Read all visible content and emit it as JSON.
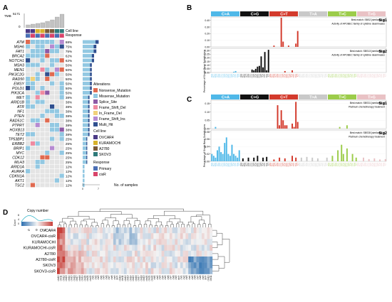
{
  "panels": {
    "a": {
      "letter": "A",
      "tmb_label": "TMB",
      "tmb_max": "5171",
      "tmb_zero": "0",
      "track_labels": [
        "Cell line",
        "Response"
      ],
      "genes": [
        "ATM",
        "MSH6",
        "FAT1",
        "BRCA2",
        "NOTCH1",
        "MSH3",
        "MEN1",
        "PIK3C2G",
        "RAD50",
        "EMSY",
        "POLD1",
        "PIK3CA",
        "MET",
        "ARID1B",
        "ATR",
        "NF1",
        "PTEN",
        "RAD51C",
        "PTPRT",
        "HOXB13",
        "TET2",
        "TP53BP1",
        "ERBB2",
        "BRIP1",
        "MYC",
        "CDK12",
        "MLH3",
        "ARID1A",
        "AURKA",
        "CDKN1A",
        "AKT1",
        "TSC2"
      ],
      "percents": [
        "88%",
        "75%",
        "75%",
        "62%",
        "62%",
        "50%",
        "50%",
        "50%",
        "50%",
        "50%",
        "50%",
        "50%",
        "38%",
        "38%",
        "38%",
        "38%",
        "38%",
        "38%",
        "38%",
        "38%",
        "38%",
        "25%",
        "25%",
        "25%",
        "25%",
        "25%",
        "25%",
        "12%",
        "12%",
        "12%",
        "12%",
        "12%"
      ],
      "alterations_title": "Alterations",
      "alterations": [
        {
          "name": "Nonsense_Mutation",
          "color": "#e06a50"
        },
        {
          "name": "Missense_Mutation",
          "color": "#92c8e2"
        },
        {
          "name": "Splice_Site",
          "color": "#8d5aa6"
        },
        {
          "name": "Frame_Shift_Del",
          "color": "#ef8aa0"
        },
        {
          "name": "In_Frame_Del",
          "color": "#f1d27a"
        },
        {
          "name": "Frame_Shift_Ins",
          "color": "#b68ad1"
        },
        {
          "name": "Multi_Hit",
          "color": "#2f4f8f"
        }
      ],
      "cellline_title": "Cell line",
      "celllines": [
        {
          "name": "OVCAR4",
          "color": "#4b3a86"
        },
        {
          "name": "KURAMOCHI",
          "color": "#d8b22c"
        },
        {
          "name": "A2780",
          "color": "#7a5a3a"
        },
        {
          "name": "SKOV3",
          "color": "#2f7a7a"
        }
      ],
      "response_title": "Response",
      "responses": [
        {
          "name": "Primary",
          "color": "#4b6fb5"
        },
        {
          "name": "cisR",
          "color": "#d9446a"
        }
      ],
      "samples_axis": [
        "0",
        "7"
      ],
      "samples_label": "No. of samples"
    },
    "b": {
      "letter": "B",
      "categories": [
        {
          "name": "C>A",
          "color": "#4fb8e8"
        },
        {
          "name": "C>G",
          "color": "#111111"
        },
        {
          "name": "C>T",
          "color": "#d33a2c"
        },
        {
          "name": "T>A",
          "color": "#c9c9c9"
        },
        {
          "name": "T>C",
          "color": "#9ccc4a"
        },
        {
          "name": "T>G",
          "color": "#e9c2c5"
        }
      ],
      "ylabel": "Percentage of Single Base Substitutions",
      "sig1": {
        "label": "Sig1",
        "match": "Best match: SBS2 [similarity: 1]",
        "desc": "Activity of APOBEC family of cytidine deaminases",
        "ticks": [
          "0.00",
          "0.10",
          "0.20",
          "0.30",
          "0.40"
        ]
      },
      "sig2": {
        "label": "Sig2",
        "match": "Best match: SBS13 [similarity: 1]",
        "desc": "Activity of APOBEC family of cytidine deaminases",
        "ticks": [
          "0.00",
          "0.05",
          "0.10",
          "0.15",
          "0.20",
          "0.25",
          "0.30"
        ]
      }
    },
    "c": {
      "letter": "C",
      "ylabel": "Percentage of Single Base Substitutions",
      "sig1": {
        "label": "Sig1",
        "match": "Best match: SBS31 [similarity: 1]",
        "desc": "Platinum chemotherapy treatment",
        "ticks": [
          "0.00",
          "0.05",
          "0.10",
          "0.15"
        ]
      },
      "sig2": {
        "label": "Sig2",
        "match": "Best match: SBS35 [similarity: 1]",
        "desc": "Platinum chemotherapy treatment",
        "ticks": [
          "0.00",
          "0.02",
          "0.04",
          "0.06",
          "0.08"
        ]
      }
    },
    "d": {
      "letter": "D",
      "legend_title": "Copy number",
      "legend_count_label": "Count",
      "legend_count_ticks": [
        "0",
        "4",
        "8"
      ],
      "legend_ticks": [
        "-1",
        "0",
        "1"
      ],
      "rows": [
        "OVCAR4",
        "OVCAR4-cisR",
        "KURAMOCHI",
        "KURAMOCHI-cisR",
        "A2780",
        "A2780-cisR",
        "SKOV3",
        "SKOV3-cisR"
      ],
      "col_labels": [
        "chr10",
        "chr11",
        "chr12",
        "chr13",
        "chr14",
        "chr15",
        "chr16",
        "chr17",
        "chr18",
        "chr19",
        "chr20",
        "chr21",
        "chr22",
        "chr1",
        "chr2",
        "chr3",
        "chr4",
        "chr5",
        "chr6",
        "chr7",
        "chr8",
        "chr9",
        "chrX",
        "chr10",
        "chr11",
        "chr12",
        "chr13",
        "chr14",
        "chr15",
        "chr16",
        "chr17",
        "chr18",
        "chr19",
        "chr20",
        "chr21",
        "chr22",
        "chr1",
        "chr2",
        "chr3",
        "chr4",
        "chr5",
        "chr6",
        "chr7",
        "chr8",
        "chr9",
        "chrX",
        "chr1",
        "chr2",
        "chr3",
        "chr4",
        "chr5",
        "chr6",
        "chr7",
        "chr8",
        "chr9",
        "chrX",
        "chr10",
        "chr11"
      ]
    }
  }
}
